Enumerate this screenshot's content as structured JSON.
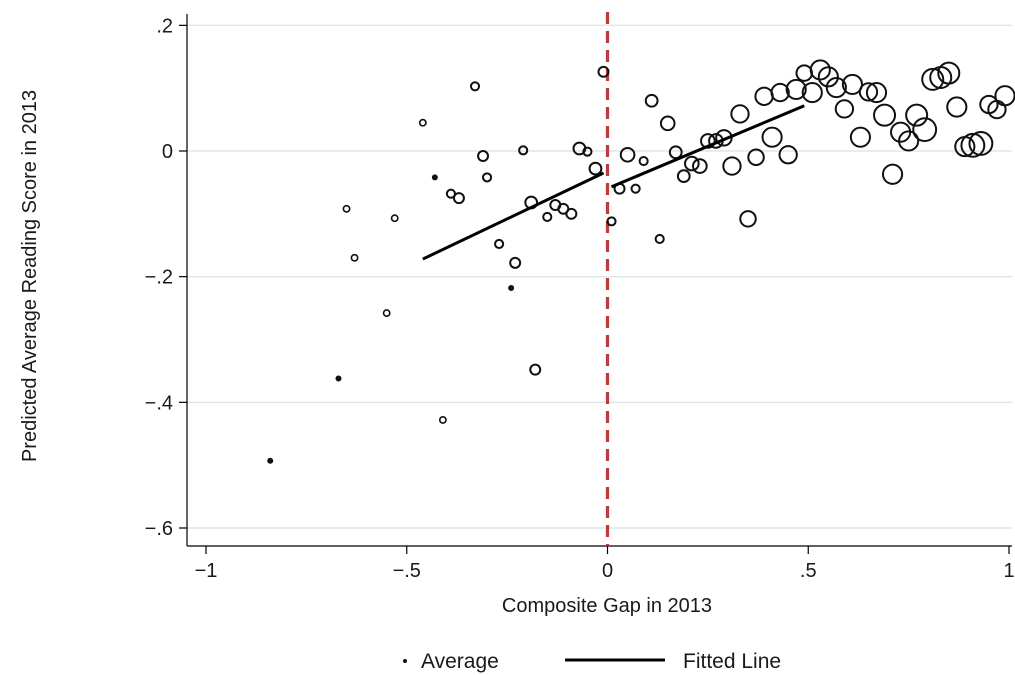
{
  "chart_data": {
    "type": "scatter",
    "title": "",
    "xlabel": "Composite Gap in 2013",
    "ylabel": "Predicted Average Reading Score in 2013",
    "xlim": [
      -1.05,
      1.0
    ],
    "ylim": [
      -0.63,
      0.22
    ],
    "xticks": [
      -1,
      -0.5,
      0,
      0.5,
      1
    ],
    "xtick_labels": [
      "−1",
      "−.5",
      "0",
      ".5",
      "1"
    ],
    "yticks": [
      0.2,
      0,
      -0.2,
      -0.4,
      -0.6
    ],
    "ytick_labels": [
      ".2",
      "0",
      "−.2",
      "−.4",
      "−.6"
    ],
    "grid": true,
    "cutoff_line": {
      "x": 0,
      "color": "#c0393b",
      "style": "dashed"
    },
    "legend": {
      "position": "bottom",
      "items": [
        {
          "label": "Average",
          "marker": "dot"
        },
        {
          "label": "Fitted Line",
          "marker": "line"
        }
      ]
    },
    "series": [
      {
        "name": "Average",
        "type": "scatter",
        "points": [
          {
            "x": -0.84,
            "y": -0.493,
            "s": 1
          },
          {
            "x": -0.67,
            "y": -0.362,
            "s": 1
          },
          {
            "x": -0.65,
            "y": -0.092,
            "s": 2
          },
          {
            "x": -0.63,
            "y": -0.17,
            "s": 2
          },
          {
            "x": -0.55,
            "y": -0.258,
            "s": 2
          },
          {
            "x": -0.53,
            "y": -0.107,
            "s": 2
          },
          {
            "x": -0.46,
            "y": 0.045,
            "s": 2
          },
          {
            "x": -0.43,
            "y": -0.042,
            "s": 1
          },
          {
            "x": -0.41,
            "y": -0.428,
            "s": 2
          },
          {
            "x": -0.39,
            "y": -0.068,
            "s": 3
          },
          {
            "x": -0.37,
            "y": -0.075,
            "s": 4
          },
          {
            "x": -0.33,
            "y": 0.103,
            "s": 3
          },
          {
            "x": -0.31,
            "y": -0.008,
            "s": 4
          },
          {
            "x": -0.3,
            "y": -0.042,
            "s": 3
          },
          {
            "x": -0.27,
            "y": -0.148,
            "s": 3
          },
          {
            "x": -0.24,
            "y": -0.218,
            "s": 1
          },
          {
            "x": -0.23,
            "y": -0.178,
            "s": 4
          },
          {
            "x": -0.21,
            "y": 0.001,
            "s": 3
          },
          {
            "x": -0.19,
            "y": -0.082,
            "s": 5
          },
          {
            "x": -0.18,
            "y": -0.348,
            "s": 4
          },
          {
            "x": -0.15,
            "y": -0.105,
            "s": 3
          },
          {
            "x": -0.13,
            "y": -0.086,
            "s": 4
          },
          {
            "x": -0.11,
            "y": -0.092,
            "s": 4
          },
          {
            "x": -0.09,
            "y": -0.1,
            "s": 4
          },
          {
            "x": -0.07,
            "y": 0.004,
            "s": 5
          },
          {
            "x": -0.05,
            "y": -0.001,
            "s": 3
          },
          {
            "x": -0.03,
            "y": -0.028,
            "s": 5
          },
          {
            "x": -0.01,
            "y": 0.126,
            "s": 4
          },
          {
            "x": 0.01,
            "y": -0.112,
            "s": 3
          },
          {
            "x": 0.03,
            "y": -0.06,
            "s": 4
          },
          {
            "x": 0.05,
            "y": -0.006,
            "s": 6
          },
          {
            "x": 0.07,
            "y": -0.06,
            "s": 3
          },
          {
            "x": 0.09,
            "y": -0.016,
            "s": 3
          },
          {
            "x": 0.11,
            "y": 0.08,
            "s": 5
          },
          {
            "x": 0.13,
            "y": -0.14,
            "s": 3
          },
          {
            "x": 0.15,
            "y": 0.044,
            "s": 6
          },
          {
            "x": 0.17,
            "y": -0.002,
            "s": 5
          },
          {
            "x": 0.19,
            "y": -0.04,
            "s": 5
          },
          {
            "x": 0.21,
            "y": -0.02,
            "s": 6
          },
          {
            "x": 0.23,
            "y": -0.024,
            "s": 6
          },
          {
            "x": 0.25,
            "y": 0.016,
            "s": 6
          },
          {
            "x": 0.27,
            "y": 0.016,
            "s": 6
          },
          {
            "x": 0.29,
            "y": 0.021,
            "s": 7
          },
          {
            "x": 0.31,
            "y": -0.024,
            "s": 8
          },
          {
            "x": 0.33,
            "y": 0.059,
            "s": 8
          },
          {
            "x": 0.35,
            "y": -0.108,
            "s": 7
          },
          {
            "x": 0.37,
            "y": -0.01,
            "s": 7
          },
          {
            "x": 0.39,
            "y": 0.087,
            "s": 8
          },
          {
            "x": 0.41,
            "y": 0.022,
            "s": 9
          },
          {
            "x": 0.43,
            "y": 0.093,
            "s": 8
          },
          {
            "x": 0.45,
            "y": -0.006,
            "s": 8
          },
          {
            "x": 0.47,
            "y": 0.098,
            "s": 9
          },
          {
            "x": 0.49,
            "y": 0.124,
            "s": 7
          },
          {
            "x": 0.51,
            "y": 0.093,
            "s": 9
          },
          {
            "x": 0.53,
            "y": 0.129,
            "s": 9
          },
          {
            "x": 0.55,
            "y": 0.118,
            "s": 9
          },
          {
            "x": 0.57,
            "y": 0.101,
            "s": 9
          },
          {
            "x": 0.59,
            "y": 0.067,
            "s": 8
          },
          {
            "x": 0.61,
            "y": 0.106,
            "s": 9
          },
          {
            "x": 0.63,
            "y": 0.022,
            "s": 9
          },
          {
            "x": 0.65,
            "y": 0.094,
            "s": 8
          },
          {
            "x": 0.67,
            "y": 0.093,
            "s": 9
          },
          {
            "x": 0.69,
            "y": 0.057,
            "s": 10
          },
          {
            "x": 0.71,
            "y": -0.037,
            "s": 9
          },
          {
            "x": 0.73,
            "y": 0.03,
            "s": 9
          },
          {
            "x": 0.75,
            "y": 0.016,
            "s": 9
          },
          {
            "x": 0.77,
            "y": 0.057,
            "s": 10
          },
          {
            "x": 0.79,
            "y": 0.034,
            "s": 11
          },
          {
            "x": 0.81,
            "y": 0.114,
            "s": 10
          },
          {
            "x": 0.83,
            "y": 0.117,
            "s": 10
          },
          {
            "x": 0.85,
            "y": 0.124,
            "s": 10
          },
          {
            "x": 0.87,
            "y": 0.07,
            "s": 9
          },
          {
            "x": 0.89,
            "y": 0.007,
            "s": 9
          },
          {
            "x": 0.91,
            "y": 0.009,
            "s": 11
          },
          {
            "x": 0.93,
            "y": 0.012,
            "s": 11
          },
          {
            "x": 0.95,
            "y": 0.074,
            "s": 8
          },
          {
            "x": 0.97,
            "y": 0.066,
            "s": 8
          },
          {
            "x": 0.99,
            "y": 0.088,
            "s": 9
          }
        ]
      },
      {
        "name": "Fitted Line",
        "type": "line",
        "segments": [
          [
            {
              "x": -0.46,
              "y": -0.172
            },
            {
              "x": -0.01,
              "y": -0.035
            }
          ],
          [
            {
              "x": 0.01,
              "y": -0.057
            },
            {
              "x": 0.49,
              "y": 0.072
            }
          ]
        ]
      }
    ]
  }
}
